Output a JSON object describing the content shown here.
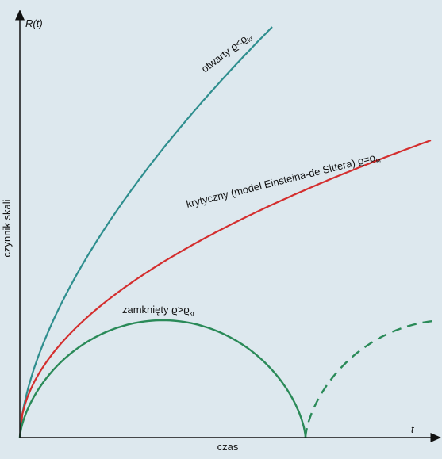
{
  "axes": {
    "y_symbol": "R(t)",
    "y_label": "czynnik skali",
    "x_symbol": "t",
    "x_label": "czas"
  },
  "curves": {
    "open": {
      "label_text": "otwarty ",
      "rho": "ϱ",
      "relation": "<",
      "rho_crit": "ϱ",
      "subscript": "kr",
      "color": "#2e8e8e"
    },
    "critical": {
      "label_text": "krytyczny (model Einsteina-de Sittera) ",
      "rho": "ϱ",
      "relation": "=",
      "rho_crit": "ϱ",
      "subscript": "kr",
      "color": "#d42e2e"
    },
    "closed": {
      "label_text": "zamknięty ",
      "rho": "ϱ",
      "relation": ">",
      "rho_crit": "ϱ",
      "subscript": "kr",
      "color": "#2a8a58"
    }
  },
  "colors": {
    "background": "#dde8ee",
    "axis": "#111111"
  }
}
